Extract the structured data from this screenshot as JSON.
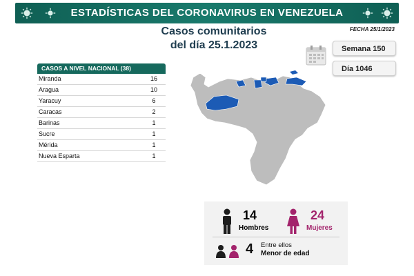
{
  "header": {
    "title": "ESTADÍSTICAS DEL CORONAVIRUS EN VENEZUELA",
    "date": "FECHA 25/1/2023"
  },
  "headline": {
    "line1": "Casos comunitarios",
    "line2": "del día 25.1.2023"
  },
  "info": {
    "week": "Semana 150",
    "day": "Día 1046"
  },
  "table": {
    "header": "CASOS A NIVEL NACIONAL",
    "total": "(38)",
    "rows": [
      {
        "state": "Miranda",
        "count": "16"
      },
      {
        "state": "Aragua",
        "count": "10"
      },
      {
        "state": "Yaracuy",
        "count": "6"
      },
      {
        "state": "Caracas",
        "count": "2"
      },
      {
        "state": "Barinas",
        "count": "1"
      },
      {
        "state": "Sucre",
        "count": "1"
      },
      {
        "state": "Mérida",
        "count": "1"
      },
      {
        "state": "Nueva Esparta",
        "count": "1"
      }
    ]
  },
  "stats": {
    "men_count": "14",
    "men_label": "Hombres",
    "women_count": "24",
    "women_label": "Mujeres",
    "minors_count": "4",
    "minors_line1": "Entre ellos",
    "minors_line2": "Menor de edad"
  },
  "colors": {
    "banner": "#16695d",
    "highlight": "#1c5bb5",
    "women": "#a3246c",
    "map": "#bdbdbd"
  }
}
